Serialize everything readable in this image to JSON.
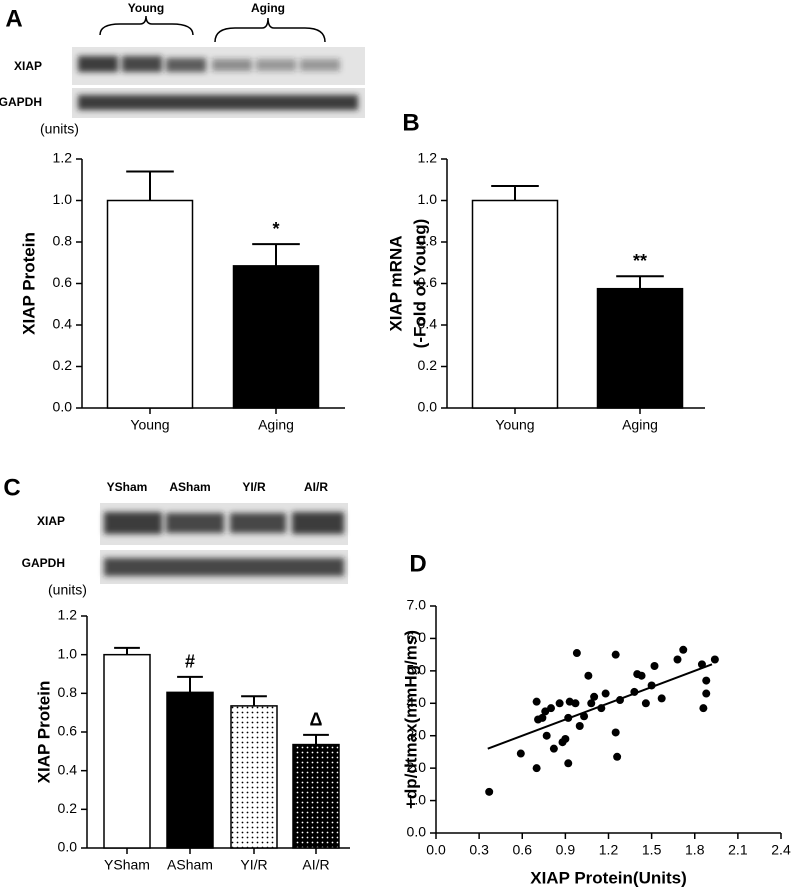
{
  "chart_data": [
    {
      "panel": "A",
      "type": "bar",
      "unit_label": "(units)",
      "ylabel": [
        "XIAP Protein"
      ],
      "blot": {
        "groups": [
          "Young",
          "Aging"
        ],
        "rows": [
          "XIAP",
          "GAPDH"
        ]
      },
      "categories": [
        "Young",
        "Aging"
      ],
      "values": [
        1.0,
        0.685
      ],
      "errors": [
        0.14,
        0.105
      ],
      "colors": [
        "#ffffff",
        "#000000"
      ],
      "hatch": [
        "none",
        "none"
      ],
      "annotations": [
        null,
        "*"
      ],
      "ylim": [
        0,
        1.2
      ],
      "yticks": [
        {
          "value": 0,
          "label": "0.0"
        },
        0.2,
        0.4,
        0.6,
        0.8,
        {
          "value": 1,
          "label": "1.0"
        },
        1.2
      ]
    },
    {
      "panel": "B",
      "type": "bar",
      "ylabel": [
        "XIAP mRNA",
        "(-Fold of Young)"
      ],
      "categories": [
        "Young",
        "Aging"
      ],
      "values": [
        1.0,
        0.575
      ],
      "errors": [
        0.07,
        0.06
      ],
      "colors": [
        "#ffffff",
        "#000000"
      ],
      "hatch": [
        "none",
        "none"
      ],
      "annotations": [
        null,
        "**"
      ],
      "ylim": [
        0,
        1.2
      ],
      "yticks": [
        {
          "value": 0,
          "label": "0.0"
        },
        0.2,
        0.4,
        0.6,
        0.8,
        {
          "value": 1,
          "label": "1.0"
        },
        1.2
      ]
    },
    {
      "panel": "C",
      "type": "bar",
      "unit_label": "(units)",
      "ylabel": [
        "XIAP Protein"
      ],
      "blot": {
        "lanes": [
          "YSham",
          "ASham",
          "YI/R",
          "AI/R"
        ],
        "rows": [
          "XIAP",
          "GAPDH"
        ]
      },
      "categories": [
        "YSham",
        "ASham",
        "YI/R",
        "AI/R"
      ],
      "values": [
        1.0,
        0.805,
        0.735,
        0.535
      ],
      "errors": [
        0.035,
        0.08,
        0.05,
        0.05
      ],
      "colors": [
        "#ffffff",
        "#000000",
        "#ffffff",
        "#000000"
      ],
      "hatch": [
        "none",
        "none",
        "dots",
        "dots"
      ],
      "annotations": [
        null,
        "#",
        null,
        "Δ"
      ],
      "ylim": [
        0,
        1.2
      ],
      "yticks": [
        {
          "value": 0,
          "label": "0.0"
        },
        0.2,
        0.4,
        0.6,
        0.8,
        {
          "value": 1,
          "label": "1.0"
        },
        1.2
      ]
    },
    {
      "panel": "D",
      "type": "scatter",
      "xlabel": "XIAP Protein(Units)",
      "ylabel": [
        "+dp/dtmax(mmHg/ms)"
      ],
      "color": "#000000",
      "x": [
        0.37,
        0.59,
        0.7,
        0.7,
        0.71,
        0.74,
        0.76,
        0.77,
        0.8,
        0.82,
        0.86,
        0.88,
        0.9,
        0.92,
        0.92,
        0.93,
        0.97,
        0.98,
        1.0,
        1.03,
        1.06,
        1.08,
        1.1,
        1.15,
        1.18,
        1.25,
        1.25,
        1.26,
        1.28,
        1.38,
        1.4,
        1.43,
        1.46,
        1.5,
        1.52,
        1.57,
        1.68,
        1.72,
        1.85,
        1.86,
        1.88,
        1.88,
        1.94
      ],
      "values": [
        1.27,
        2.45,
        2.0,
        4.05,
        3.5,
        3.55,
        3.75,
        3.0,
        3.85,
        2.6,
        4.0,
        2.8,
        2.9,
        3.55,
        2.15,
        4.05,
        4.0,
        5.55,
        3.3,
        3.6,
        4.85,
        4.0,
        4.2,
        3.85,
        4.3,
        3.1,
        5.5,
        2.35,
        4.1,
        4.35,
        4.9,
        4.85,
        4.0,
        4.55,
        5.15,
        4.15,
        5.35,
        5.65,
        5.2,
        3.85,
        4.3,
        4.7,
        5.35
      ],
      "fit": {
        "x": [
          0.36,
          1.92
        ],
        "values": [
          2.6,
          5.2
        ]
      },
      "xlim": [
        0,
        2.4
      ],
      "xticks": [
        {
          "value": 0,
          "label": "0.0"
        },
        0.3,
        0.6,
        0.9,
        1.2,
        1.5,
        1.8,
        2.1,
        2.4
      ],
      "ylim": [
        0,
        7
      ],
      "yticks": [
        {
          "value": 0,
          "label": "0.0"
        },
        {
          "value": 1,
          "label": "1.0"
        },
        {
          "value": 2,
          "label": "2.0"
        },
        {
          "value": 3,
          "label": "3.0"
        },
        {
          "value": 4,
          "label": "4.0"
        },
        {
          "value": 5,
          "label": "5.0"
        },
        {
          "value": 6,
          "label": "6.0"
        },
        {
          "value": 7,
          "label": "7.0"
        }
      ]
    }
  ]
}
